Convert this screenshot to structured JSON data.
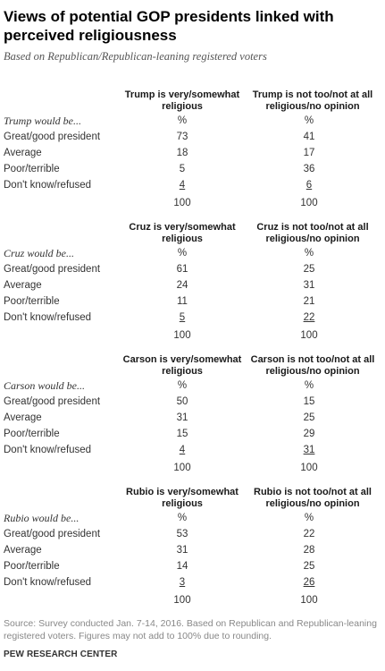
{
  "title_line1": "Views of potential GOP presidents linked with",
  "title_line2": "perceived religiousness",
  "subtitle": "Based on Republican/Republican-leaning registered voters",
  "blocks": [
    {
      "col1_line1": "Trump is very/somewhat",
      "col1_line2": "religious",
      "col2_line1": "Trump is not too/not at all",
      "col2_line2": "religious/no opinion",
      "rows": [
        {
          "label": "Trump would be...",
          "v1": "%",
          "v2": "%"
        },
        {
          "label": "Great/good president",
          "v1": "73",
          "v2": "41"
        },
        {
          "label": "Average",
          "v1": "18",
          "v2": "17"
        },
        {
          "label": "Poor/terrible",
          "v1": "5",
          "v2": "36"
        },
        {
          "label": "Don't know/refused",
          "v1": "4",
          "v2": "6"
        },
        {
          "label": "",
          "v1": "100",
          "v2": "100"
        }
      ]
    },
    {
      "col1_line1": "Cruz is very/somewhat",
      "col1_line2": "religious",
      "col2_line1": "Cruz is not too/not at all",
      "col2_line2": "religious/no opinion",
      "rows": [
        {
          "label": "Cruz would be...",
          "v1": "%",
          "v2": "%"
        },
        {
          "label": "Great/good president",
          "v1": "61",
          "v2": "25"
        },
        {
          "label": "Average",
          "v1": "24",
          "v2": "31"
        },
        {
          "label": "Poor/terrible",
          "v1": "11",
          "v2": "21"
        },
        {
          "label": "Don't know/refused",
          "v1": "5",
          "v2": "22"
        },
        {
          "label": "",
          "v1": "100",
          "v2": "100"
        }
      ]
    },
    {
      "col1_line1": "Carson is very/somewhat",
      "col1_line2": "religious",
      "col2_line1": "Carson is not too/not at all",
      "col2_line2": "religious/no opinion",
      "rows": [
        {
          "label": "Carson would be...",
          "v1": "%",
          "v2": "%"
        },
        {
          "label": "Great/good president",
          "v1": "50",
          "v2": "15"
        },
        {
          "label": "Average",
          "v1": "31",
          "v2": "25"
        },
        {
          "label": "Poor/terrible",
          "v1": "15",
          "v2": "29"
        },
        {
          "label": "Don't know/refused",
          "v1": "4",
          "v2": "31"
        },
        {
          "label": "",
          "v1": "100",
          "v2": "100"
        }
      ]
    },
    {
      "col1_line1": "Rubio is very/somewhat",
      "col1_line2": "religious",
      "col2_line1": "Rubio is not too/not at all",
      "col2_line2": "religious/no opinion",
      "rows": [
        {
          "label": "Rubio would be...",
          "v1": "%",
          "v2": "%"
        },
        {
          "label": "Great/good president",
          "v1": "53",
          "v2": "22"
        },
        {
          "label": "Average",
          "v1": "31",
          "v2": "28"
        },
        {
          "label": "Poor/terrible",
          "v1": "14",
          "v2": "25"
        },
        {
          "label": "Don't know/refused",
          "v1": "3",
          "v2": "26"
        },
        {
          "label": "",
          "v1": "100",
          "v2": "100"
        }
      ]
    }
  ],
  "source_line1": "Source: Survey conducted Jan. 7-14, 2016. Based on Republican and Republican-leaning",
  "source_line2": "registered voters. Figures may not add to 100% due to rounding.",
  "footer": "PEW RESEARCH CENTER"
}
